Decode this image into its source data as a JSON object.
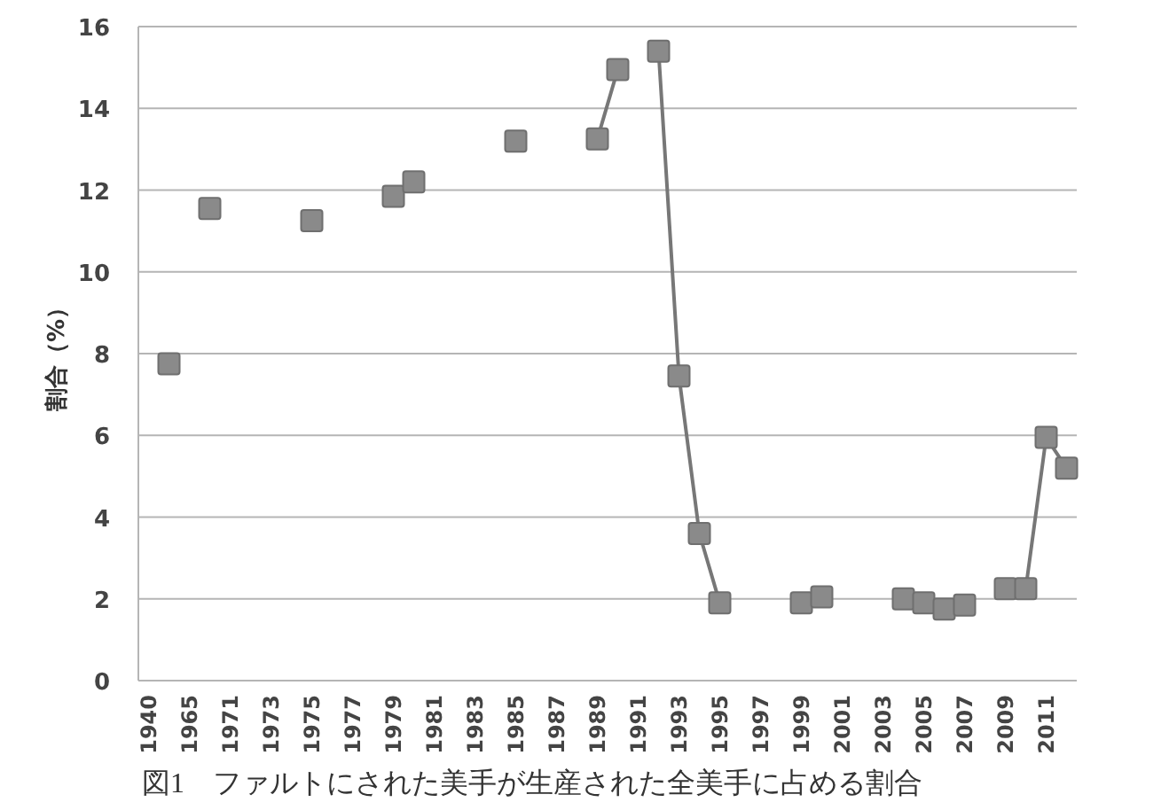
{
  "chart_data": {
    "type": "line",
    "ylabel": "割合（%）",
    "annotations": [
      "図1　ファルトにされた美手が生産された全美手に占める割合"
    ],
    "categories": [
      "1940",
      null,
      "1965",
      null,
      "1971",
      null,
      "1973",
      null,
      "1975",
      null,
      "1977",
      null,
      "1979",
      null,
      "1981",
      null,
      "1983",
      null,
      "1985",
      null,
      "1987",
      null,
      "1989",
      null,
      "1991",
      null,
      "1993",
      null,
      "1995",
      null,
      "1997",
      null,
      "1999",
      null,
      "2001",
      null,
      "2003",
      null,
      "2005",
      null,
      "2007",
      null,
      "2009",
      null,
      "2011",
      null
    ],
    "series": [
      {
        "color": "#8a8a8a",
        "values": [
          null,
          7.75,
          null,
          11.55,
          null,
          null,
          null,
          null,
          11.25,
          null,
          null,
          null,
          11.85,
          12.2,
          null,
          null,
          null,
          null,
          13.2,
          null,
          null,
          null,
          13.25,
          14.95,
          null,
          15.4,
          7.45,
          3.6,
          1.9,
          null,
          null,
          null,
          1.9,
          2.05,
          null,
          null,
          null,
          2.0,
          1.9,
          1.75,
          1.85,
          null,
          2.25,
          2.25,
          5.95,
          5.2
        ]
      }
    ],
    "ylim": [
      0,
      16
    ],
    "yticks": [
      0,
      2,
      4,
      6,
      8,
      10,
      12,
      14,
      16
    ],
    "grid": "y",
    "marker": "square",
    "line_style": "solid"
  }
}
